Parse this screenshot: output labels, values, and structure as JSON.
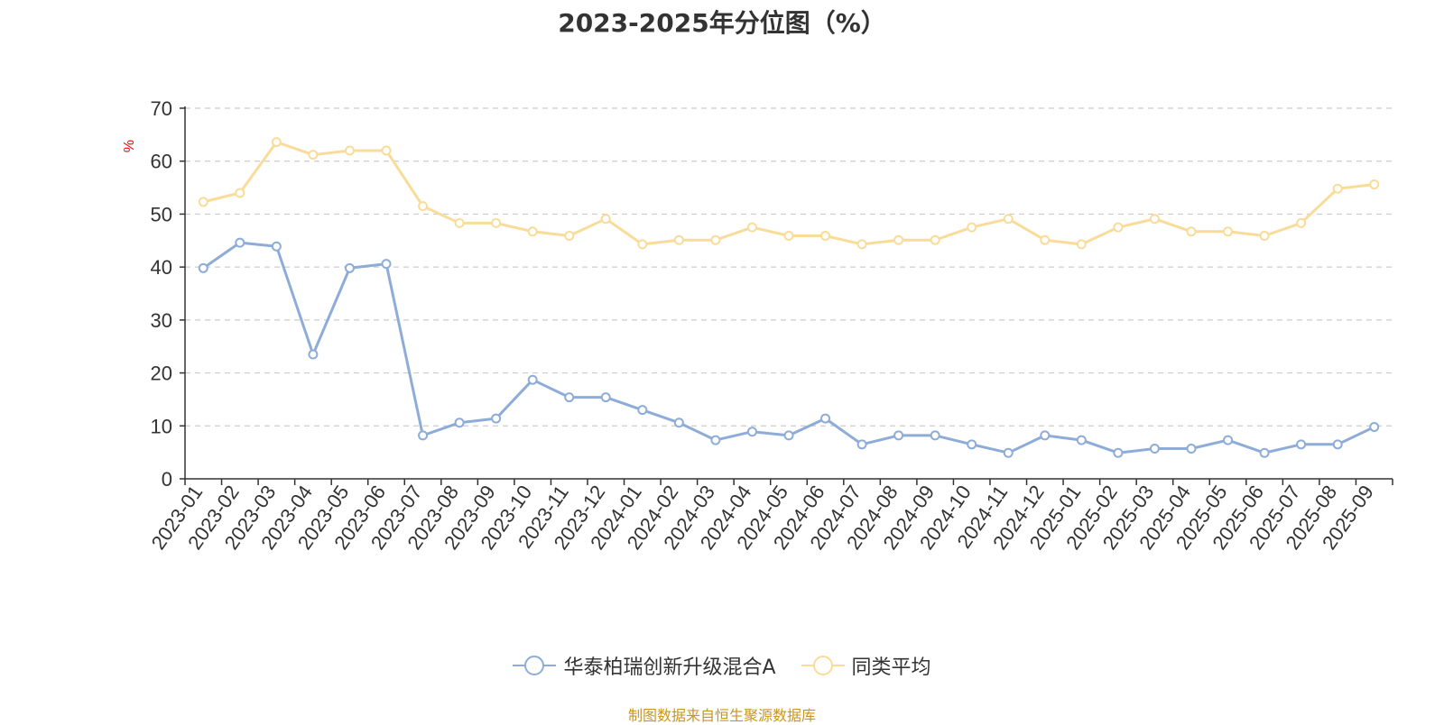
{
  "source_note": "制图数据来自恒生聚源数据库",
  "chart_data": {
    "type": "line",
    "title": "2023-2025年分位图（%）",
    "ylabel": "%",
    "xlabel": "",
    "ylim": [
      0,
      70
    ],
    "yticks": [
      0,
      10,
      20,
      30,
      40,
      50,
      60,
      70
    ],
    "grid": true,
    "legend_position": "bottom-center",
    "categories": [
      "2023-01",
      "2023-02",
      "2023-03",
      "2023-04",
      "2023-05",
      "2023-06",
      "2023-07",
      "2023-08",
      "2023-09",
      "2023-10",
      "2023-11",
      "2023-12",
      "2024-01",
      "2024-02",
      "2024-03",
      "2024-04",
      "2024-05",
      "2024-06",
      "2024-07",
      "2024-08",
      "2024-09",
      "2024-10",
      "2024-11",
      "2024-12",
      "2025-01",
      "2025-02",
      "2025-03",
      "2025-04",
      "2025-05",
      "2025-06",
      "2025-07",
      "2025-08",
      "2025-09"
    ],
    "series": [
      {
        "name": "华泰柏瑞创新升级混合A",
        "color": "#8eacd8",
        "values": [
          39.8,
          44.6,
          43.9,
          23.5,
          39.8,
          40.6,
          8.2,
          10.6,
          11.4,
          18.7,
          15.4,
          15.4,
          13.0,
          10.6,
          7.3,
          8.9,
          8.2,
          11.4,
          6.5,
          8.2,
          8.2,
          6.5,
          4.9,
          8.2,
          7.3,
          4.9,
          5.7,
          5.7,
          7.3,
          4.9,
          6.5,
          6.5,
          9.8
        ]
      },
      {
        "name": "同类平均",
        "color": "#fadc9a",
        "values": [
          52.3,
          54.0,
          63.6,
          61.2,
          62.0,
          62.0,
          51.5,
          48.3,
          48.3,
          46.7,
          45.9,
          49.1,
          44.3,
          45.1,
          45.1,
          47.5,
          45.9,
          45.9,
          44.3,
          45.1,
          45.1,
          47.5,
          49.1,
          45.1,
          44.3,
          47.5,
          49.1,
          46.7,
          46.7,
          45.9,
          48.3,
          54.8,
          55.6
        ]
      }
    ]
  }
}
